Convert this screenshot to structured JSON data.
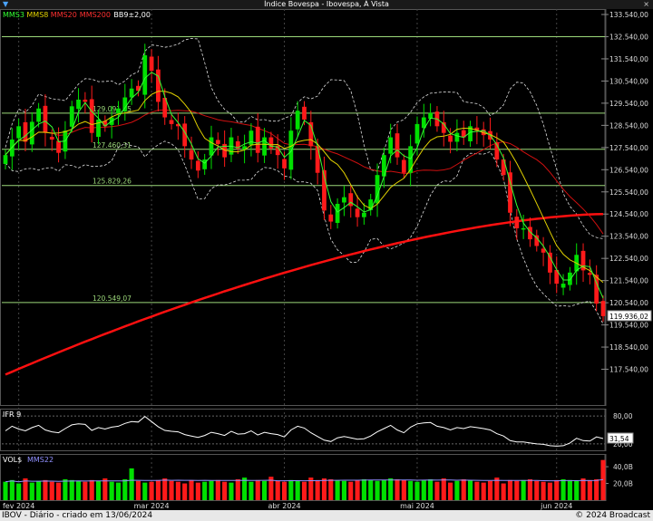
{
  "window": {
    "title": "Índice Bovespa - Ibovespa, À Vista",
    "close_label": "×"
  },
  "footer": {
    "left": "IBOV - Diário - criado em 13/06/2024",
    "right": "© 2024 Broadcast"
  },
  "colors": {
    "up": "#00e000",
    "down": "#ff1a1a",
    "mms3": "#33ff33",
    "mms8": "#e0d000",
    "mms20": "#d01010",
    "mms200": "#ff1010",
    "bb": "#dddddd",
    "level": "#9cd87a",
    "grid": "#333333"
  },
  "chart_data": [
    {
      "type": "line",
      "panel": "price",
      "legend": [
        {
          "label": "MMS3",
          "color": "#33ff33"
        },
        {
          "label": "MMS8",
          "color": "#e0d000"
        },
        {
          "label": "MMS20",
          "color": "#ff3030"
        },
        {
          "label": "MMS200",
          "color": "#ff3030"
        },
        {
          "label": "BB9±2,00",
          "color": "#ffffff"
        }
      ],
      "ylim": [
        116540,
        133540
      ],
      "yticks": [
        "133.540,00",
        "132.540,00",
        "131.540,00",
        "130.540,00",
        "129.540,00",
        "128.540,00",
        "127.540,00",
        "126.540,00",
        "125.540,00",
        "124.540,00",
        "123.540,00",
        "122.540,00",
        "121.540,00",
        "120.540,00",
        "119.540,00",
        "118.540,00",
        "117.540,00"
      ],
      "last_price_label": "119.936,02",
      "last_price": 119936,
      "xticks": [
        {
          "label": "fev 2024",
          "i": 2
        },
        {
          "label": "mar 2024",
          "i": 22
        },
        {
          "label": "abr 2024",
          "i": 42
        },
        {
          "label": "mai 2024",
          "i": 62
        },
        {
          "label": "jun 2024",
          "i": 83
        }
      ],
      "levels": [
        {
          "value": 132540,
          "label": ""
        },
        {
          "value": 129091,
          "label": "129.091,15"
        },
        {
          "value": 127460,
          "label": "127.460,31"
        },
        {
          "value": 125829,
          "label": "125.829,26"
        },
        {
          "value": 120549,
          "label": "120.549,07"
        }
      ],
      "close": [
        127200,
        127900,
        128500,
        127800,
        128700,
        129300,
        128200,
        127900,
        127300,
        128300,
        129400,
        129700,
        129600,
        128200,
        128800,
        128500,
        128900,
        129300,
        129800,
        130200,
        130100,
        131700,
        131000,
        129600,
        128900,
        128600,
        128500,
        127600,
        127000,
        126500,
        127000,
        128000,
        127700,
        127100,
        128000,
        127500,
        127600,
        128300,
        127300,
        128000,
        127500,
        127200,
        126600,
        128300,
        129200,
        128800,
        127600,
        126400,
        124700,
        124200,
        125000,
        125300,
        124900,
        124400,
        124600,
        125200,
        126300,
        127200,
        128000,
        127100,
        126400,
        127600,
        128600,
        128900,
        129100,
        128500,
        128200,
        127800,
        128200,
        128000,
        128500,
        128300,
        128100,
        127900,
        127000,
        126300,
        124600,
        123900,
        123900,
        123400,
        123100,
        122800,
        121900,
        121400,
        121400,
        121900,
        122700,
        122000,
        121800,
        120500,
        119936
      ],
      "ohlc_note": "Daily candles approximated from the chart; close values in index points.",
      "mms200": {
        "start": 117300,
        "end": 124540
      }
    },
    {
      "type": "line",
      "panel": "rsi",
      "title": "IFR 9",
      "ylim": [
        10,
        90
      ],
      "yticks": [
        "80,00",
        "20,00"
      ],
      "last_value_label": "31,54",
      "values": [
        48,
        58,
        52,
        48,
        55,
        60,
        50,
        46,
        44,
        53,
        61,
        63,
        62,
        49,
        55,
        52,
        56,
        58,
        64,
        68,
        67,
        79,
        68,
        57,
        49,
        47,
        46,
        40,
        37,
        34,
        38,
        45,
        42,
        38,
        47,
        41,
        42,
        48,
        39,
        45,
        42,
        40,
        35,
        50,
        58,
        54,
        44,
        36,
        28,
        25,
        33,
        36,
        33,
        30,
        31,
        37,
        46,
        53,
        60,
        50,
        44,
        56,
        63,
        65,
        66,
        58,
        55,
        50,
        55,
        53,
        57,
        55,
        53,
        50,
        42,
        37,
        27,
        24,
        24,
        22,
        20,
        19,
        16,
        15,
        16,
        22,
        32,
        27,
        26,
        35,
        31.54
      ]
    },
    {
      "type": "bar",
      "panel": "volume",
      "title": "VOL$",
      "legend": [
        {
          "label": "MMS22",
          "color": "#9090ff"
        }
      ],
      "ylim": [
        0,
        52
      ],
      "yticks": [
        "40,0B",
        "20,0B"
      ],
      "values": [
        22,
        24,
        20,
        26,
        21,
        23,
        24,
        22,
        21,
        25,
        24,
        23,
        22,
        24,
        23,
        26,
        22,
        21,
        25,
        38,
        23,
        21,
        22,
        24,
        26,
        23,
        22,
        20,
        24,
        21,
        22,
        23,
        24,
        22,
        21,
        25,
        27,
        22,
        24,
        23,
        28,
        23,
        22,
        24,
        23,
        22,
        27,
        24,
        26,
        25,
        24,
        23,
        22,
        24,
        25,
        24,
        23,
        24,
        26,
        25,
        24,
        23,
        22,
        24,
        25,
        22,
        26,
        21,
        23,
        25,
        24,
        22,
        21,
        23,
        27,
        20,
        24,
        23,
        24,
        25,
        23,
        22,
        21,
        24,
        25,
        24,
        23,
        26,
        24,
        25,
        48
      ]
    }
  ]
}
